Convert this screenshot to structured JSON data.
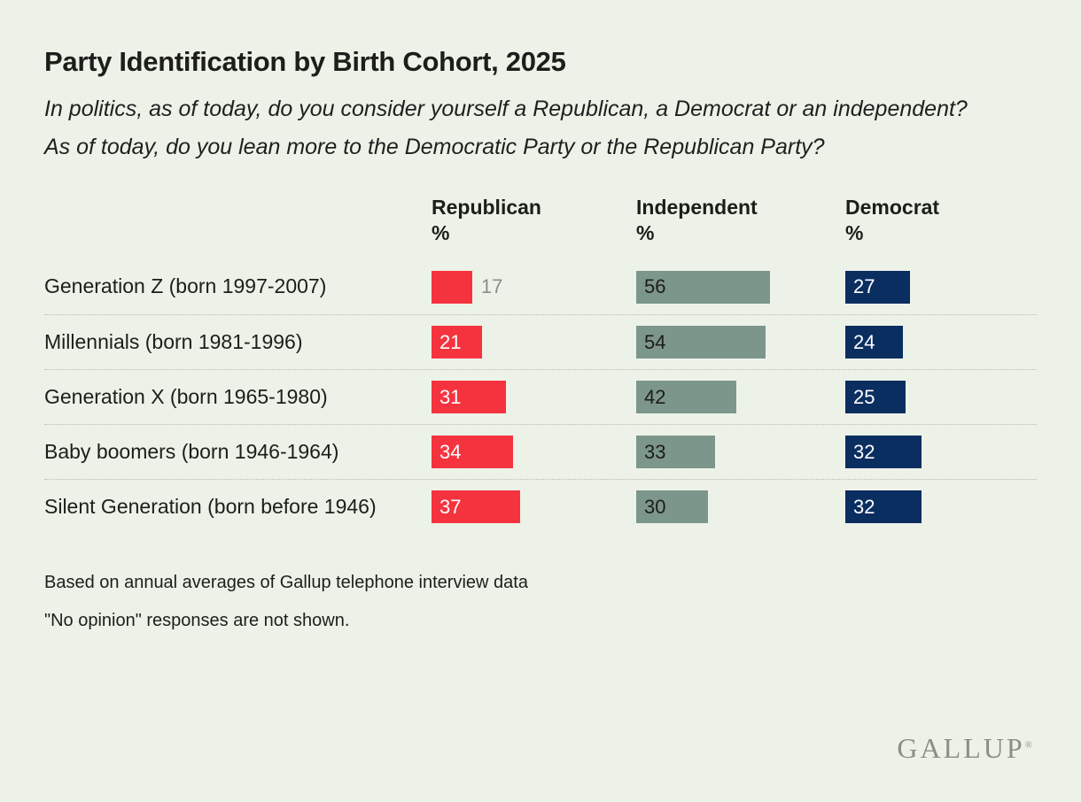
{
  "page": {
    "background_color": "#edf2e8"
  },
  "header": {
    "title": "Party Identification by Birth Cohort, 2025",
    "subtitle_lines": [
      "In politics, as of today, do you consider yourself a Republican, a Democrat or an independent?",
      "As of today, do you lean more to the Democratic Party or the Republican Party?"
    ]
  },
  "chart_data": {
    "type": "bar",
    "orientation": "horizontal",
    "title": "Party Identification by Birth Cohort, 2025",
    "categories": [
      "Generation Z (born 1997-2007)",
      "Millennials (born 1981-1996)",
      "Generation X (born 1965-1980)",
      "Baby boomers (born 1946-1964)",
      "Silent Generation (born before 1946)"
    ],
    "series": [
      {
        "name": "Republican",
        "unit": "%",
        "color": "#F5333F",
        "label_color_inside": "#ffffff",
        "values": [
          17,
          21,
          31,
          34,
          37
        ]
      },
      {
        "name": "Independent",
        "unit": "%",
        "color": "#7D968C",
        "label_color_inside": "#1d1d1b",
        "values": [
          56,
          54,
          42,
          33,
          30
        ]
      },
      {
        "name": "Democrat",
        "unit": "%",
        "color": "#0B2E61",
        "label_color_inside": "#ffffff",
        "values": [
          27,
          24,
          25,
          32,
          32
        ]
      }
    ],
    "value_range": [
      0,
      60
    ],
    "grid": false,
    "legend_position": "column-headers",
    "outside_label_threshold": 20,
    "outside_label_color": "#8c8c8c",
    "separator_style": "dotted"
  },
  "notes": [
    "Based on annual averages of Gallup telephone interview data",
    "\"No opinion\" responses are not shown."
  ],
  "branding": {
    "logo_text": "GALLUP",
    "registered_mark": "®"
  }
}
